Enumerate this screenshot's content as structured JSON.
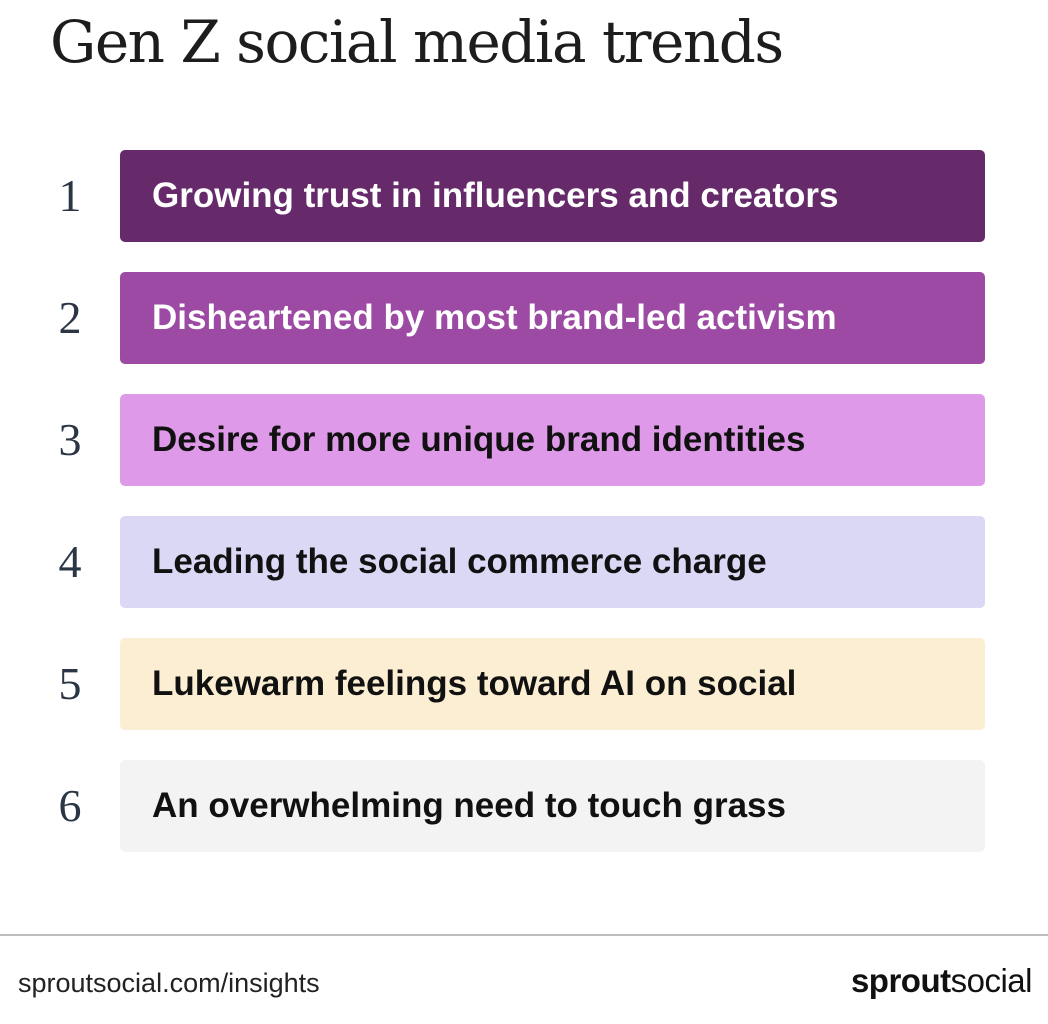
{
  "title": "Gen Z social media trends",
  "trends": [
    {
      "number": "1",
      "label": "Growing trust in influencers and creators",
      "bg": "#662a6b",
      "fg": "#ffffff"
    },
    {
      "number": "2",
      "label": "Disheartened by most brand-led activism",
      "bg": "#9c4aa3",
      "fg": "#ffffff"
    },
    {
      "number": "3",
      "label": "Desire for more unique brand identities",
      "bg": "#de9ae8",
      "fg": "#111111"
    },
    {
      "number": "4",
      "label": "Leading the social commerce charge",
      "bg": "#dad8f5",
      "fg": "#111111"
    },
    {
      "number": "5",
      "label": "Lukewarm feelings toward AI on social",
      "bg": "#fbeed3",
      "fg": "#111111"
    },
    {
      "number": "6",
      "label": "An overwhelming need to touch grass",
      "bg": "#f2f3f2",
      "fg": "#111111"
    }
  ],
  "footer": {
    "url": "sproutsocial.com/insights",
    "brand_strong": "sprout",
    "brand_light": "social"
  }
}
